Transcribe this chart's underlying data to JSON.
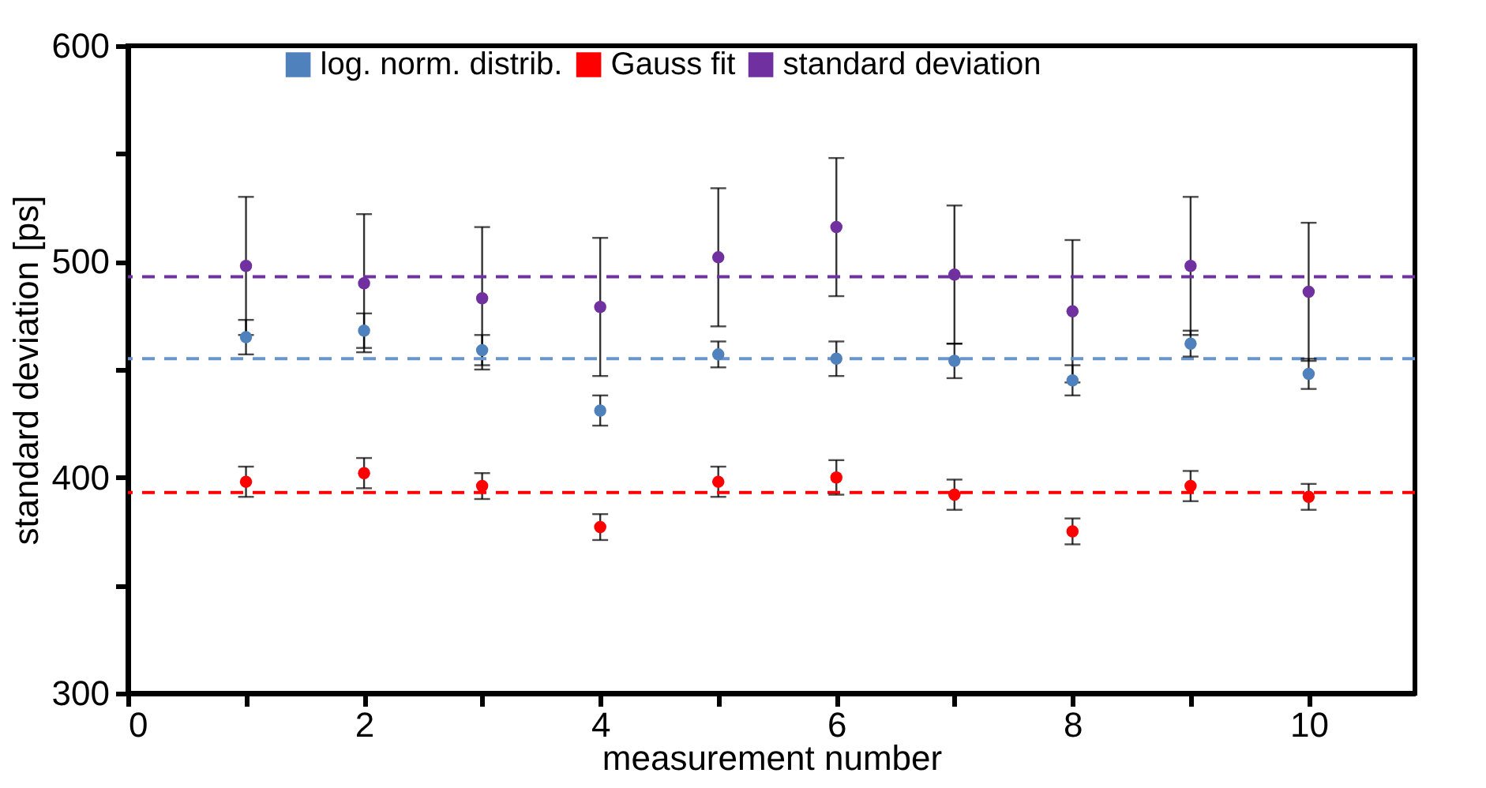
{
  "chart_data": {
    "type": "scatter",
    "xlabel": "measurement number",
    "ylabel": "standard deviation [ps]",
    "x": [
      1,
      2,
      3,
      4,
      5,
      6,
      7,
      8,
      9,
      10
    ],
    "xlim": [
      0,
      10.9
    ],
    "xticks": [
      0,
      {
        "value": 1,
        "label": null
      },
      2,
      {
        "value": 3,
        "label": null
      },
      4,
      {
        "value": 5,
        "label": null
      },
      6,
      {
        "value": 7,
        "label": null
      },
      8,
      {
        "value": 9,
        "label": null
      },
      10
    ],
    "ylim": [
      300,
      600
    ],
    "yticks": [
      300,
      {
        "value": 350,
        "label": null
      },
      400,
      {
        "value": 450,
        "label": null
      },
      500,
      {
        "value": 550,
        "label": null
      },
      600
    ],
    "series": [
      {
        "name": "log. norm. distrib.",
        "color": "#4f81bd",
        "values": [
          465,
          468,
          459,
          431,
          457,
          455,
          454,
          445,
          462,
          448
        ],
        "errors": [
          8,
          8,
          7,
          7,
          6,
          8,
          8,
          7,
          6,
          7
        ]
      },
      {
        "name": "Gauss fit",
        "color": "#ff0000",
        "values": [
          398,
          402,
          396,
          377,
          398,
          400,
          392,
          375,
          396,
          391
        ],
        "errors": [
          7,
          7,
          6,
          6,
          7,
          8,
          7,
          6,
          7,
          6
        ]
      },
      {
        "name": "standard deviation",
        "color": "#7030a0",
        "values": [
          498,
          490,
          483,
          479,
          502,
          516,
          494,
          477,
          498,
          486
        ],
        "errors": [
          32,
          32,
          33,
          32,
          32,
          32,
          32,
          33,
          32,
          32
        ]
      }
    ],
    "ref_lines": [
      {
        "axis": "y",
        "value": 455,
        "color": "#6a95cc",
        "line_style": "dashed"
      },
      {
        "axis": "y",
        "value": 393,
        "color": "#ff0000",
        "line_style": "dashed"
      },
      {
        "axis": "y",
        "value": 493,
        "color": "#7030a0",
        "line_style": "dashed"
      }
    ],
    "marker": "circle",
    "grid": false,
    "legend": "top"
  }
}
